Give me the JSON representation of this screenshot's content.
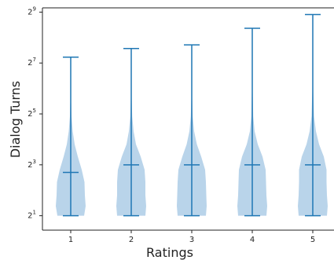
{
  "chart_data": {
    "type": "violin",
    "title": "",
    "xlabel": "Ratings",
    "ylabel": "Dialog Turns",
    "categories": [
      "1",
      "2",
      "3",
      "4",
      "5"
    ],
    "y_scale": "log2",
    "ylim": [
      1.35,
      575
    ],
    "y_ticks": [
      {
        "value": 2,
        "base": "2",
        "exp": "1"
      },
      {
        "value": 8,
        "base": "2",
        "exp": "3"
      },
      {
        "value": 32,
        "base": "2",
        "exp": "5"
      },
      {
        "value": 128,
        "base": "2",
        "exp": "7"
      },
      {
        "value": 512,
        "base": "2",
        "exp": "9"
      }
    ],
    "series": [
      {
        "category": "1",
        "min": 2,
        "median": 6.5,
        "max": 150
      },
      {
        "category": "2",
        "min": 2,
        "median": 8,
        "max": 190
      },
      {
        "category": "3",
        "min": 2,
        "median": 8,
        "max": 210
      },
      {
        "category": "4",
        "min": 2,
        "median": 8,
        "max": 330
      },
      {
        "category": "5",
        "min": 2,
        "median": 8,
        "max": 480
      }
    ],
    "colors": {
      "violin_fill": "#b9d4ea",
      "line": "#1f77b4",
      "axis": "#222222"
    },
    "grid": false,
    "legend": "none"
  }
}
